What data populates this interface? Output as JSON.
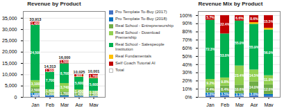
{
  "chart_data": [
    {
      "type": "bar",
      "title": "Revenue by Product",
      "stacked": true,
      "data_labels": true,
      "grid": true,
      "categories": [
        "Jan",
        "Feb",
        "Mar",
        "Apr",
        "May"
      ],
      "series": [
        {
          "name": "Pro Template To-Buy (2017)",
          "color": "#4472C4",
          "values": [
            800,
            300,
            200,
            200,
            150
          ],
          "value_labels": [
            "800",
            null,
            null,
            null,
            null
          ]
        },
        {
          "name": "Pro Template To-Buy (2018)",
          "color": "#0070C0",
          "values": [
            1000,
            500,
            500,
            300,
            200
          ],
          "value_labels": [
            "1,000",
            null,
            null,
            null,
            null
          ]
        },
        {
          "name": "Real School - Entrepreneurship",
          "color": "#70AD47",
          "values": [
            2500,
            1200,
            1700,
            1400,
            1200
          ],
          "value_labels": [
            "2,500",
            "1,200",
            "1,700",
            "1,400",
            "1,200"
          ]
        },
        {
          "name": "Real School - Download Premership",
          "color": "#92D050",
          "values": [
            3100,
            1400,
            3740,
            1450,
            1100
          ],
          "value_labels": [
            "3,100",
            "1,400",
            "3,740",
            "1,450",
            "1,100"
          ]
        },
        {
          "name": "Real School - Salespeople Institution",
          "color": "#00B050",
          "values": [
            24500,
            7700,
            8700,
            5600,
            5600
          ],
          "value_labels": [
            "24,500",
            "7,700",
            "8,700",
            "5,600",
            "5,600"
          ]
        },
        {
          "name": "Real Fundamentals",
          "color": "#FFC000",
          "values": [
            0,
            0,
            0,
            200,
            200
          ],
          "value_labels": [
            null,
            null,
            null,
            null,
            null
          ]
        },
        {
          "name": "Self Coach Tutorial AI",
          "color": "#C00000",
          "values": [
            1400,
            1300,
            1500,
            900,
            1700
          ],
          "value_labels": [
            "1,400",
            "1,300",
            "1,500",
            "900",
            "1,700"
          ]
        }
      ],
      "totals": {
        "name": "Total",
        "color": "#FFFFFF",
        "values": [
          33913,
          14313,
          16000,
          10025,
          10001
        ],
        "value_labels": [
          "33,913",
          "14,313",
          "16,000",
          "10,025",
          "10,001"
        ]
      },
      "ylim": [
        0,
        38000
      ],
      "yticks": [
        0,
        {
          "value": 5000,
          "label": "5,000"
        },
        {
          "value": 10000,
          "label": "10,000"
        },
        {
          "value": 15000,
          "label": "15,000"
        },
        {
          "value": 20000,
          "label": "20,000"
        },
        {
          "value": 25000,
          "label": "25,000"
        },
        {
          "value": 30000,
          "label": "30,000"
        },
        {
          "value": 35000,
          "label": "35,000"
        }
      ]
    },
    {
      "type": "bar",
      "title": "Revenue Mix by Product",
      "stacked": true,
      "data_labels": true,
      "grid": true,
      "categories": [
        "Jan",
        "Feb",
        "Mar",
        "Apr",
        "May"
      ],
      "series": [
        {
          "name": "Pro Template To-Buy (2017)",
          "color": "#4472C4",
          "values": [
            0.024,
            0.021,
            0.013,
            0.02,
            0.015
          ],
          "value_labels": [
            null,
            null,
            null,
            null,
            null
          ]
        },
        {
          "name": "Pro Template To-Buy (2018)",
          "color": "#0070C0",
          "values": [
            0.03,
            0.035,
            0.031,
            0.03,
            0.02
          ],
          "value_labels": [
            "3.0%",
            "3.5%",
            "3.1%",
            "3.0%",
            null
          ]
        },
        {
          "name": "Real School - Entrepreneurship",
          "color": "#70AD47",
          "values": [
            0.074,
            0.084,
            0.106,
            0.14,
            0.12
          ],
          "value_labels": [
            "7.4%",
            "8.4%",
            "10.6%",
            "14.0%",
            "12.0%"
          ]
        },
        {
          "name": "Real School - Download Premership",
          "color": "#92D050",
          "values": [
            0.092,
            0.098,
            0.234,
            0.145,
            0.11
          ],
          "value_labels": [
            "9.2%",
            "9.8%",
            "23.4%",
            "14.5%",
            "11.0%"
          ]
        },
        {
          "name": "Real School - Salespeople Institution",
          "color": "#00B050",
          "values": [
            0.723,
            0.538,
            0.55,
            0.559,
            0.56
          ],
          "value_labels": [
            "72.3%",
            "53.8%",
            "55.0%",
            "55.9%",
            "56.0%"
          ]
        },
        {
          "name": "Real Fundamentals",
          "color": "#FFC000",
          "values": [
            0.0,
            0.0,
            0.0,
            0.02,
            0.02
          ],
          "value_labels": [
            null,
            null,
            null,
            null,
            null
          ]
        },
        {
          "name": "Self Coach Tutorial AI",
          "color": "#C00000",
          "values": [
            0.057,
            0.224,
            0.066,
            0.086,
            0.155
          ],
          "value_labels": [
            "5.7%",
            "22.4%",
            "6.6%",
            "8.6%",
            "15.5%"
          ]
        }
      ],
      "ylim": [
        0,
        1.05
      ],
      "yticks": [
        {
          "value": 0,
          "label": "0%"
        },
        {
          "value": 0.1,
          "label": "10%"
        },
        {
          "value": 0.2,
          "label": "20%"
        },
        {
          "value": 0.3,
          "label": "30%"
        },
        {
          "value": 0.4,
          "label": "40%"
        },
        {
          "value": 0.5,
          "label": "50%"
        },
        {
          "value": 0.6,
          "label": "60%"
        },
        {
          "value": 0.7,
          "label": "70%"
        },
        {
          "value": 0.8,
          "label": "80%"
        },
        {
          "value": 0.9,
          "label": "90%"
        },
        {
          "value": 1,
          "label": "100%"
        }
      ]
    }
  ]
}
